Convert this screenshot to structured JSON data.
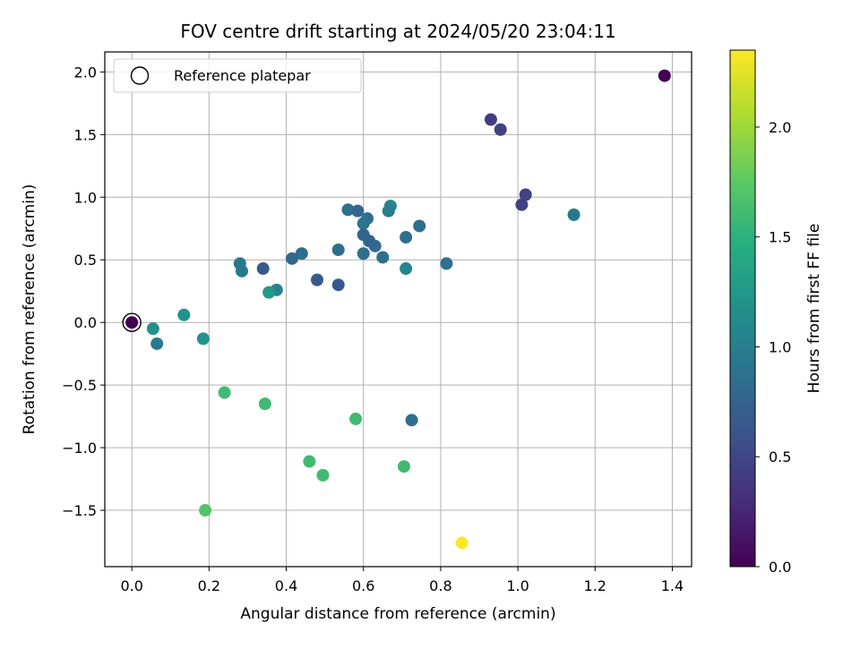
{
  "chart_data": {
    "type": "scatter",
    "title": "FOV centre drift starting at 2024/05/20 23:04:11",
    "xlabel": "Angular distance from reference (arcmin)",
    "ylabel": "Rotation from reference (arcmin)",
    "xlim": [
      -0.07,
      1.45
    ],
    "ylim": [
      -1.95,
      2.16
    ],
    "x_ticks": [
      0.0,
      0.2,
      0.4,
      0.6,
      0.8,
      1.0,
      1.2,
      1.4
    ],
    "x_tick_labels": [
      "0.0",
      "0.2",
      "0.4",
      "0.6",
      "0.8",
      "1.0",
      "1.2",
      "1.4"
    ],
    "y_ticks": [
      2.0,
      1.5,
      1.0,
      0.5,
      0.0,
      -0.5,
      -1.0,
      -1.5
    ],
    "y_tick_labels": [
      "2.0",
      "1.5",
      "1.0",
      "0.5",
      "0.0",
      "−0.5",
      "−1.0",
      "−1.5"
    ],
    "grid": true,
    "legend": {
      "placement": "top-left",
      "entries": [
        "Reference platepar"
      ]
    },
    "colorbar": {
      "label": "Hours from first FF file",
      "range": [
        0.0,
        2.35
      ],
      "ticks": [
        0.0,
        0.5,
        1.0,
        1.5,
        2.0
      ],
      "tick_labels": [
        "0.0",
        "0.5",
        "1.0",
        "1.5",
        "2.0"
      ],
      "colormap": "viridis"
    },
    "reference_point": {
      "x": 0.0,
      "y": 0.0,
      "hours": 0.0
    },
    "points": [
      {
        "x": 1.38,
        "y": 1.97,
        "hours": 0.0
      },
      {
        "x": 0.93,
        "y": 1.62,
        "hours": 0.42
      },
      {
        "x": 0.955,
        "y": 1.54,
        "hours": 0.45
      },
      {
        "x": 1.02,
        "y": 1.02,
        "hours": 0.45
      },
      {
        "x": 1.01,
        "y": 0.94,
        "hours": 0.45
      },
      {
        "x": 1.145,
        "y": 0.86,
        "hours": 0.95
      },
      {
        "x": 0.67,
        "y": 0.93,
        "hours": 1.05
      },
      {
        "x": 0.665,
        "y": 0.89,
        "hours": 1.0
      },
      {
        "x": 0.745,
        "y": 0.77,
        "hours": 0.85
      },
      {
        "x": 0.56,
        "y": 0.9,
        "hours": 0.85
      },
      {
        "x": 0.585,
        "y": 0.89,
        "hours": 0.75
      },
      {
        "x": 0.61,
        "y": 0.83,
        "hours": 0.85
      },
      {
        "x": 0.6,
        "y": 0.79,
        "hours": 0.9
      },
      {
        "x": 0.6,
        "y": 0.7,
        "hours": 0.75
      },
      {
        "x": 0.615,
        "y": 0.65,
        "hours": 0.75
      },
      {
        "x": 0.63,
        "y": 0.61,
        "hours": 0.8
      },
      {
        "x": 0.71,
        "y": 0.68,
        "hours": 0.85
      },
      {
        "x": 0.535,
        "y": 0.58,
        "hours": 0.85
      },
      {
        "x": 0.6,
        "y": 0.55,
        "hours": 0.85
      },
      {
        "x": 0.65,
        "y": 0.52,
        "hours": 0.85
      },
      {
        "x": 0.815,
        "y": 0.47,
        "hours": 0.85
      },
      {
        "x": 0.71,
        "y": 0.43,
        "hours": 1.05
      },
      {
        "x": 0.44,
        "y": 0.55,
        "hours": 0.85
      },
      {
        "x": 0.415,
        "y": 0.51,
        "hours": 0.8
      },
      {
        "x": 0.28,
        "y": 0.47,
        "hours": 0.95
      },
      {
        "x": 0.285,
        "y": 0.41,
        "hours": 0.95
      },
      {
        "x": 0.34,
        "y": 0.43,
        "hours": 0.65
      },
      {
        "x": 0.48,
        "y": 0.34,
        "hours": 0.65
      },
      {
        "x": 0.535,
        "y": 0.3,
        "hours": 0.65
      },
      {
        "x": 0.375,
        "y": 0.26,
        "hours": 1.0
      },
      {
        "x": 0.355,
        "y": 0.24,
        "hours": 1.25
      },
      {
        "x": 0.135,
        "y": 0.06,
        "hours": 1.2
      },
      {
        "x": 0.055,
        "y": -0.05,
        "hours": 1.2
      },
      {
        "x": 0.065,
        "y": -0.17,
        "hours": 0.95
      },
      {
        "x": 0.185,
        "y": -0.13,
        "hours": 1.2
      },
      {
        "x": 0.24,
        "y": -0.56,
        "hours": 1.6
      },
      {
        "x": 0.345,
        "y": -0.65,
        "hours": 1.6
      },
      {
        "x": 0.58,
        "y": -0.77,
        "hours": 1.6
      },
      {
        "x": 0.725,
        "y": -0.78,
        "hours": 0.85
      },
      {
        "x": 0.46,
        "y": -1.11,
        "hours": 1.6
      },
      {
        "x": 0.495,
        "y": -1.22,
        "hours": 1.6
      },
      {
        "x": 0.705,
        "y": -1.15,
        "hours": 1.6
      },
      {
        "x": 0.19,
        "y": -1.5,
        "hours": 1.7
      },
      {
        "x": 0.855,
        "y": -1.76,
        "hours": 2.35
      }
    ]
  }
}
